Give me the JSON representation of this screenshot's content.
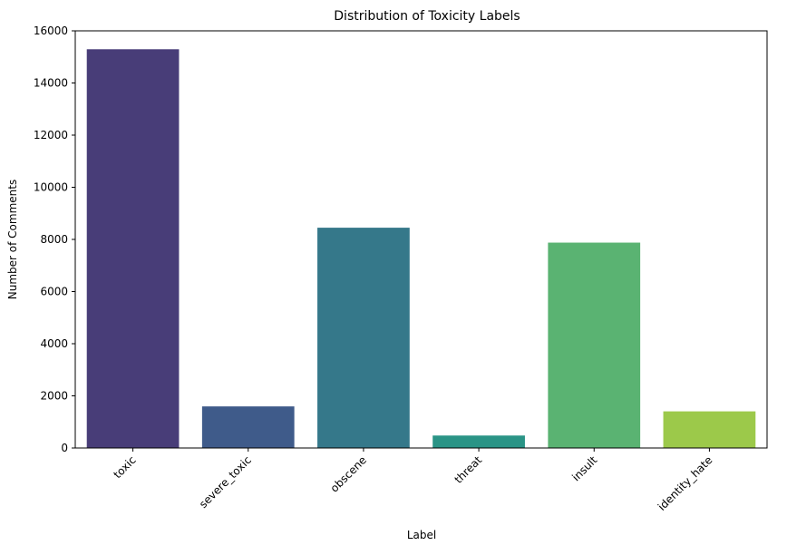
{
  "chart_data": {
    "type": "bar",
    "title": "Distribution of Toxicity Labels",
    "xlabel": "Label",
    "ylabel": "Number of Comments",
    "categories": [
      "toxic",
      "severe_toxic",
      "obscene",
      "threat",
      "insult",
      "identity_hate"
    ],
    "values": [
      15294,
      1595,
      8449,
      478,
      7877,
      1405
    ],
    "colors": [
      "#483d78",
      "#3f5b8a",
      "#35788a",
      "#2a9486",
      "#5ab372",
      "#9cc94a"
    ],
    "ylim": [
      0,
      16000
    ],
    "yticks": [
      0,
      2000,
      4000,
      6000,
      8000,
      10000,
      12000,
      14000,
      16000
    ],
    "ytick_labels": [
      "0",
      "2000",
      "4000",
      "6000",
      "8000",
      "10000",
      "12000",
      "14000",
      "16000"
    ],
    "grid": false,
    "legend": "none"
  }
}
